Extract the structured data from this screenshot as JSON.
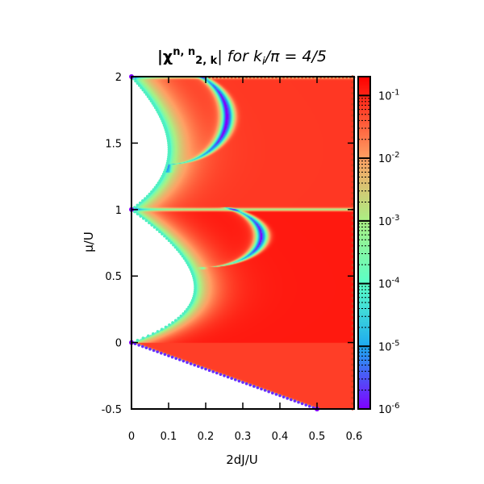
{
  "chart_data": {
    "type": "heatmap",
    "title": {
      "main": "|χ",
      "sup": "n, n",
      "sub": "2, k",
      "close": "|",
      "suffix": " for k",
      "suffix_sub": "i",
      "suffix_tail": "/π = 4/5"
    },
    "xlabel": "2dJ/U",
    "ylabel": "μ/U",
    "xlim": [
      0,
      0.6
    ],
    "ylim": [
      -0.5,
      2
    ],
    "x_ticks": [
      "0",
      "0.1",
      "0.2",
      "0.3",
      "0.4",
      "0.5",
      "0.6"
    ],
    "x_tick_values": [
      0,
      0.1,
      0.2,
      0.3,
      0.4,
      0.5,
      0.6
    ],
    "y_ticks": [
      "-0.5",
      "0",
      "0.5",
      "1",
      "1.5",
      "2"
    ],
    "y_tick_values": [
      -0.5,
      0,
      0.5,
      1,
      1.5,
      2
    ],
    "colorbar": {
      "scale": "log",
      "range": [
        1e-06,
        0.2
      ],
      "ticks": [
        {
          "value": 1e-06,
          "base": "10",
          "exp": "-6"
        },
        {
          "value": 1e-05,
          "base": "10",
          "exp": "-5"
        },
        {
          "value": 0.0001,
          "base": "10",
          "exp": "-4"
        },
        {
          "value": 0.001,
          "base": "10",
          "exp": "-3"
        },
        {
          "value": 0.01,
          "base": "10",
          "exp": "-2"
        },
        {
          "value": 0.1,
          "base": "10",
          "exp": "-1"
        }
      ],
      "colors": [
        {
          "value": 1e-06,
          "color": "#7f00ff"
        },
        {
          "value": 1e-05,
          "color": "#1eaaf0"
        },
        {
          "value": 0.0001,
          "color": "#5affc8"
        },
        {
          "value": 0.001,
          "color": "#aaf084"
        },
        {
          "value": 0.01,
          "color": "#ffa064"
        },
        {
          "value": 0.2,
          "color": "#ff0000"
        }
      ]
    },
    "lobes": [
      {
        "n": 0,
        "mu_range": [
          0,
          1
        ],
        "tip": [
          0.172,
          0.414
        ]
      },
      {
        "n": 1,
        "mu_range": [
          1,
          2
        ],
        "tip": [
          0.1,
          1.5
        ]
      }
    ],
    "ridges": [
      {
        "mu_range": [
          0.55,
          1.02
        ],
        "x_peak": 0.352,
        "mu_peak": 0.8
      },
      {
        "mu_range": [
          1.28,
          2.0
        ],
        "x_peak": 0.26,
        "mu_peak": 1.7
      }
    ],
    "lower_boundary": {
      "from": [
        0,
        0
      ],
      "to": [
        0.5,
        -0.5
      ]
    }
  }
}
